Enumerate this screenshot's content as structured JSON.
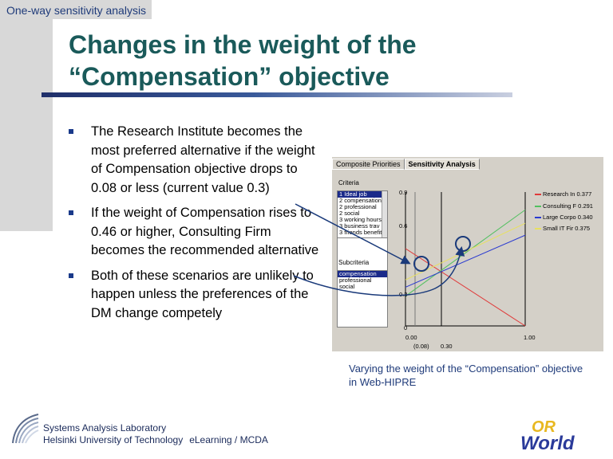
{
  "header": {
    "section_label": "One-way sensitivity analysis"
  },
  "title": {
    "line1": "Changes in the weight of the",
    "line2": "“Compensation” objective"
  },
  "bullets": [
    "The Research Institute becomes the most preferred alternative if the weight of Compensation objective drops to 0.08 or less (current value 0.3)",
    "If the weight of Compensation rises to 0.46 or higher, Consulting Firm becomes the recommended alternative",
    "Both of these scenarios are unlikely to happen unless the preferences of the DM change competely"
  ],
  "screenshot": {
    "tabs": [
      "Composite Priorities",
      "Sensitivity Analysis"
    ],
    "criteria_label": "Criteria",
    "criteria_items": [
      "1 Ideal job",
      "2 compensation",
      "2 professional",
      "2 social",
      "3 working hours",
      "3 business trav",
      "3 friends benefit"
    ],
    "subcriteria_label": "Subcriteria",
    "subcriteria_items": [
      "compensation",
      "professional",
      "social"
    ],
    "legend": [
      {
        "label": "Research In 0.377",
        "color": "#e03a3a"
      },
      {
        "label": "Consulting F 0.291",
        "color": "#52c060"
      },
      {
        "label": "Large Corpo 0.340",
        "color": "#2a3ad0"
      },
      {
        "label": "Small IT Fir 0.375",
        "color": "#e8e060"
      }
    ],
    "y_ticks": [
      "0.9",
      "0.6",
      "0.3",
      "0"
    ],
    "x_ticks": [
      "0.00",
      "1.00"
    ],
    "x_marks": [
      "(0.08)",
      "0.30"
    ]
  },
  "chart_data": {
    "type": "line",
    "x": [
      0,
      1
    ],
    "xlim": [
      0,
      1
    ],
    "ylim": [
      0,
      0.9
    ],
    "series": [
      {
        "name": "Research In",
        "values": [
          0.52,
          0.0
        ]
      },
      {
        "name": "Consulting F",
        "values": [
          0.2,
          0.78
        ]
      },
      {
        "name": "Large Corpo",
        "values": [
          0.26,
          0.61
        ]
      },
      {
        "name": "Small IT Fir",
        "values": [
          0.31,
          0.69
        ]
      }
    ],
    "markers": [
      0.08,
      0.3
    ]
  },
  "caption": "Varying the weight of the “Compensation” objective in Web-HIPRE",
  "footer": {
    "line1": "Systems Analysis Laboratory",
    "line2": "Helsinki University of Technology",
    "line2_extra": "eLearning / MCDA"
  },
  "logo": {
    "top": "OR",
    "bottom": "World"
  }
}
